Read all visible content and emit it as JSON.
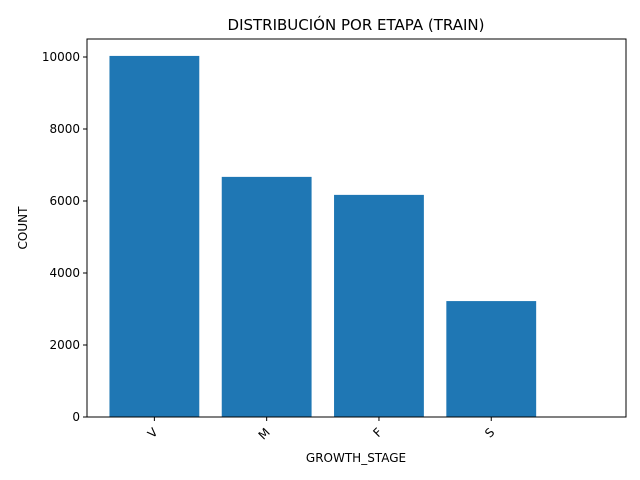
{
  "chart_data": {
    "type": "bar",
    "title": "DISTRIBUCIÓN POR ETAPA (TRAIN)",
    "xlabel": "GROWTH_STAGE",
    "ylabel": "COUNT",
    "categories": [
      "V",
      "M",
      "F",
      "S"
    ],
    "values": [
      10030,
      6670,
      6170,
      3220
    ],
    "ylim": [
      0,
      10500
    ],
    "yticks": [
      0,
      2000,
      4000,
      6000,
      8000,
      10000
    ],
    "bar_color": "#1f77b4",
    "grid": false
  }
}
